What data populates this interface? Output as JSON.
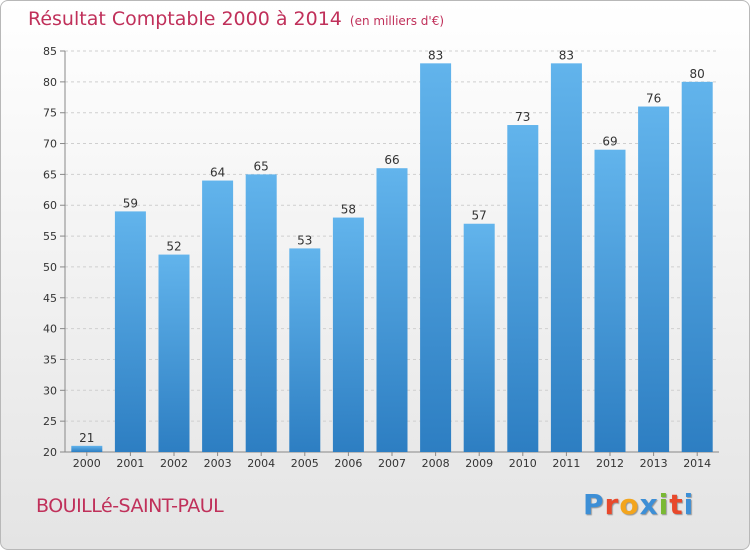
{
  "title": "Résultat Comptable 2000 à 2014",
  "unit": "(en milliers d'€)",
  "place": "BOUILLé-SAINT-PAUL",
  "logo": {
    "letters": [
      "P",
      "r",
      "o",
      "x",
      "i",
      "t",
      "i"
    ],
    "colors": [
      "#3d8fd6",
      "#e8492c",
      "#f3a51d",
      "#3d8fd6",
      "#7ab934",
      "#e8492c",
      "#3d8fd6"
    ]
  },
  "colors": {
    "bar_top": "#62b4ec",
    "bar_bottom": "#2d7ec2",
    "text": "#c0305a"
  },
  "chart_data": {
    "type": "bar",
    "title": "Résultat Comptable 2000 à 2014",
    "categories": [
      "2000",
      "2001",
      "2002",
      "2003",
      "2004",
      "2005",
      "2006",
      "2007",
      "2008",
      "2009",
      "2010",
      "2011",
      "2012",
      "2013",
      "2014"
    ],
    "values": [
      21,
      59,
      52,
      64,
      65,
      53,
      58,
      66,
      83,
      57,
      73,
      83,
      69,
      76,
      80
    ],
    "ylim": [
      20,
      85
    ],
    "yticks": [
      20,
      25,
      30,
      35,
      40,
      45,
      50,
      55,
      60,
      65,
      70,
      75,
      80,
      85
    ],
    "grid": true,
    "xlabel": "",
    "ylabel": ""
  }
}
